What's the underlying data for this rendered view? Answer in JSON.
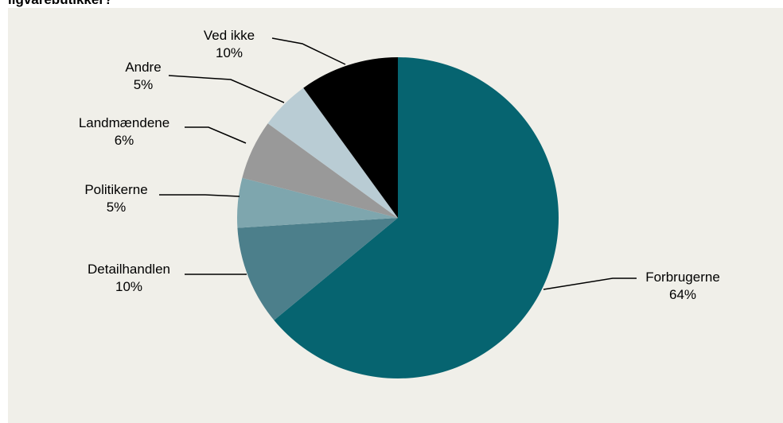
{
  "chart_data": {
    "type": "pie",
    "title": "ligvarebutikker?",
    "slices": [
      {
        "label": "Forbrugerne",
        "value_label": "64%",
        "value": 64,
        "color": "#066470"
      },
      {
        "label": "Detailhandlen",
        "value_label": "10%",
        "value": 10,
        "color": "#4c7f8b"
      },
      {
        "label": "Politikerne",
        "value_label": "5%",
        "value": 5,
        "color": "#7ea6ae"
      },
      {
        "label": "Landmændene",
        "value_label": "6%",
        "value": 6,
        "color": "#999999"
      },
      {
        "label": "Andre",
        "value_label": "5%",
        "value": 5,
        "color": "#b9ccd4"
      },
      {
        "label": "Ved ikke",
        "value_label": "10%",
        "value": 10,
        "color": "#000000"
      }
    ],
    "start": "12 o'clock",
    "direction": "clockwise",
    "legend": "none",
    "background_color": "#f0efe9"
  }
}
